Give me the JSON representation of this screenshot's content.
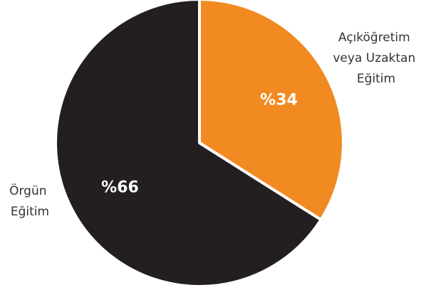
{
  "chart_data": {
    "type": "pie",
    "categories": [
      "Açıköğretim veya Uzaktan Eğitim",
      "Örgün Eğitim"
    ],
    "values": [
      34,
      66
    ],
    "data_labels": [
      "%34",
      "%66"
    ],
    "label_colors": [
      "#ffffff",
      "#ffffff"
    ],
    "category_lines": [
      [
        "Açıköğretim",
        "veya Uzaktan",
        "Eğitim"
      ],
      [
        "Örgün",
        "Eğitim"
      ]
    ],
    "colors": [
      "#f18a21",
      "#231f20"
    ],
    "legend": "outside labels (right for orange slice, left for dark slice)",
    "start_angle": "12 o'clock, clockwise"
  }
}
